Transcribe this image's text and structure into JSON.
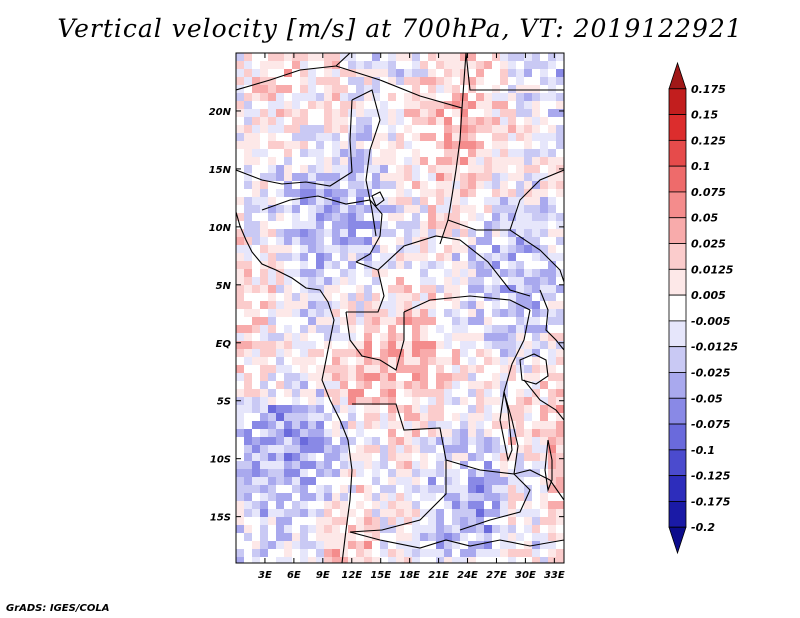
{
  "chart_data": {
    "type": "heatmap",
    "title": "Vertical velocity [m/s] at 700hPa, VT: 2019122921",
    "variable": "Vertical velocity",
    "units": "m/s",
    "level": "700hPa",
    "valid_time": "2019122921",
    "x_range": [
      0,
      34
    ],
    "y_range": [
      -19,
      25
    ],
    "x_ticks": [
      3,
      6,
      9,
      12,
      15,
      18,
      21,
      24,
      27,
      30,
      33
    ],
    "x_tick_labels": [
      "3E",
      "6E",
      "9E",
      "12E",
      "15E",
      "18E",
      "21E",
      "24E",
      "27E",
      "30E",
      "33E"
    ],
    "y_ticks": [
      20,
      15,
      10,
      5,
      0,
      -5,
      -10,
      -15
    ],
    "y_tick_labels": [
      "20N",
      "15N",
      "10N",
      "5N",
      "EQ",
      "5S",
      "10S",
      "15S"
    ],
    "colorbar_levels": [
      "0.175",
      "0.15",
      "0.125",
      "0.1",
      "0.075",
      "0.05",
      "0.025",
      "0.0125",
      "0.005",
      "-0.005",
      "-0.0125",
      "-0.025",
      "-0.05",
      "-0.075",
      "-0.1",
      "-0.125",
      "-0.175",
      "-0.2"
    ],
    "colorbar_colors": [
      "#a01818",
      "#c21e1e",
      "#dc2d2d",
      "#e64b4b",
      "#ee6b6b",
      "#f48c8c",
      "#f8abab",
      "#fbcccc",
      "#fde8e8",
      "#ffffff",
      "#e6e6fb",
      "#c9c9f4",
      "#a9a9ee",
      "#8989e6",
      "#6a6adc",
      "#4b4bce",
      "#2d2dbc",
      "#1a1aa6",
      "#0c0c8c"
    ],
    "grid": false
  },
  "footer": {
    "credit": "GrADS: IGES/COLA"
  }
}
